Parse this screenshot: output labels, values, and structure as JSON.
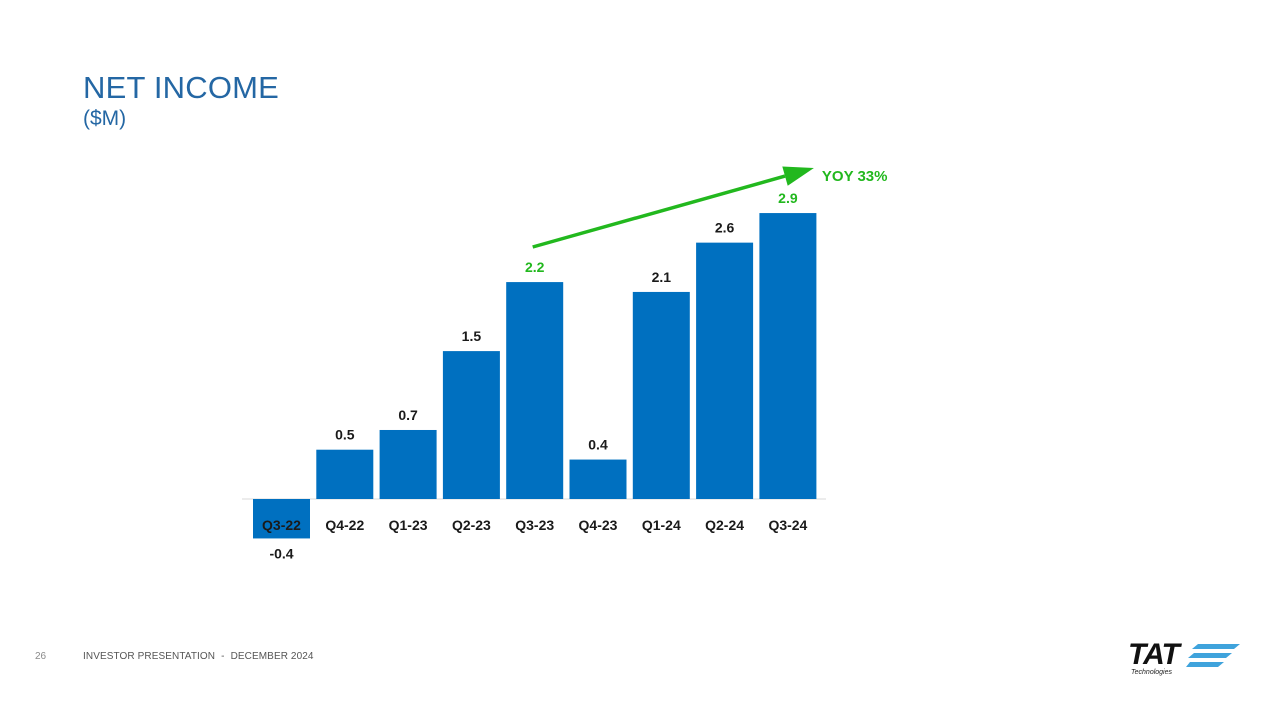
{
  "slide": {
    "title": "NET INCOME",
    "subtitle": "($M)"
  },
  "chart_data": {
    "type": "bar",
    "title": "NET INCOME",
    "subtitle": "($M)",
    "categories": [
      "Q3-22",
      "Q4-22",
      "Q1-23",
      "Q2-23",
      "Q3-23",
      "Q4-23",
      "Q1-24",
      "Q2-24",
      "Q3-24"
    ],
    "values": [
      -0.4,
      0.5,
      0.7,
      1.5,
      2.2,
      0.4,
      2.1,
      2.6,
      2.9
    ],
    "value_labels": [
      "-0.4",
      "0.5",
      "0.7",
      "1.5",
      "2.2",
      "0.4",
      "2.1",
      "2.6",
      "2.9"
    ],
    "highlighted_labels": [
      "Q3-23",
      "Q3-24"
    ],
    "bar_color": "#0070c0",
    "highlight_color": "#22b81e",
    "label_color": "#1a1a1a",
    "annotation": {
      "text": "YOY 33%",
      "from_category": "Q3-23",
      "to_category": "Q3-24",
      "color": "#22b81e"
    },
    "grid": false,
    "legend": false
  },
  "footer": {
    "page_number": "26",
    "presentation": "INVESTOR PRESENTATION",
    "separator": "-",
    "date": "DECEMBER 2024"
  },
  "logo": {
    "name": "TAT",
    "tagline": "Technologies",
    "stripe_color": "#3fa3dc"
  }
}
